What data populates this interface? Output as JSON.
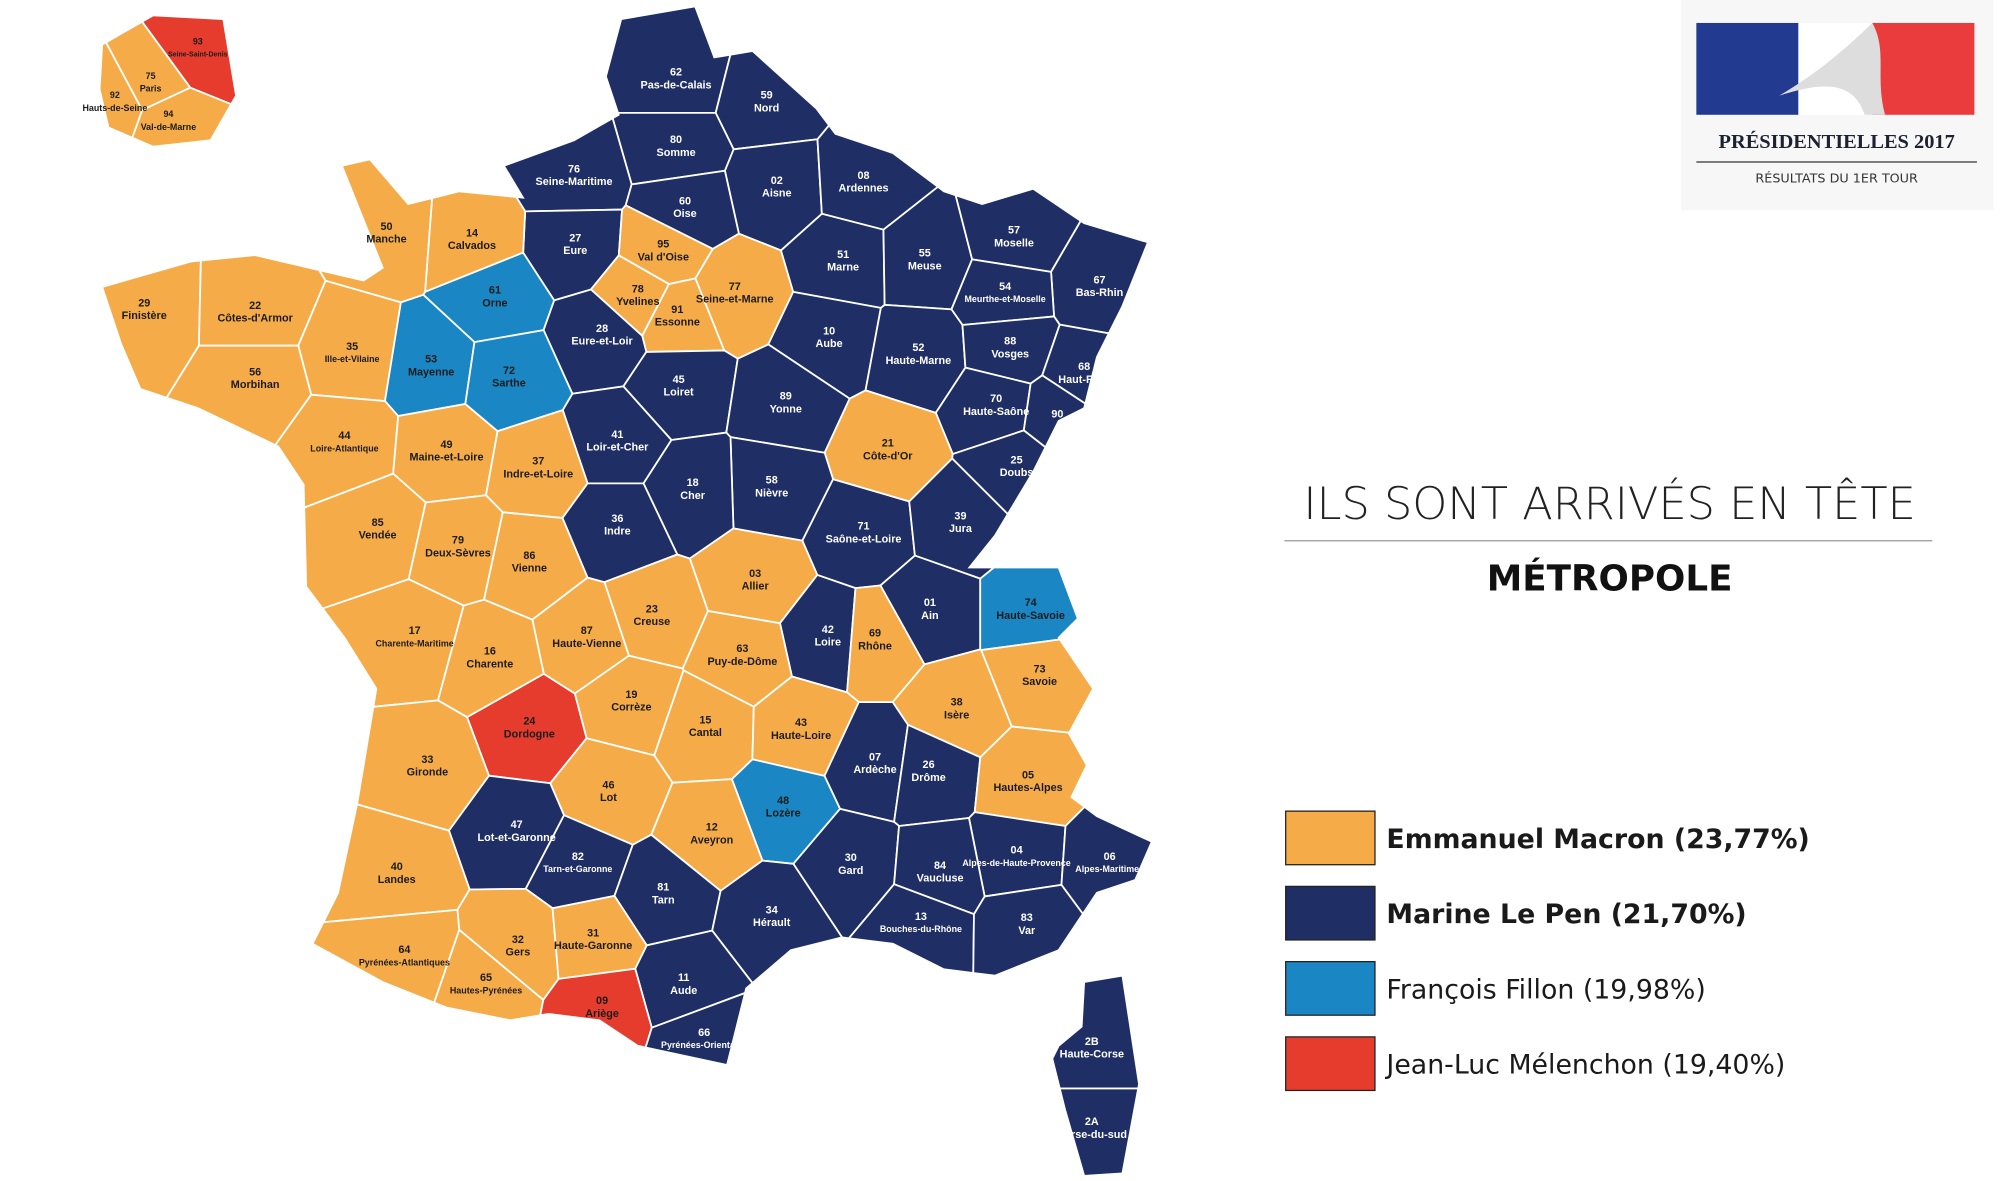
{
  "header": {
    "title": "PRÉSIDENTIELLES 2017",
    "subtitle": "RÉSULTATS DU 1ER TOUR"
  },
  "title": "ILS SONT ARRIVÉS EN TÊTE",
  "subtitle": "MÉTROPOLE",
  "legend": [
    {
      "label": "Emmanuel Macron (23,77%)",
      "color": "#f5ac48"
    },
    {
      "label": "Marine Le Pen (21,70%)",
      "color": "#1f2f66"
    },
    {
      "label": "François Fillon (19,98%)",
      "color": "#1a87c4"
    },
    {
      "label": "Jean-Luc Mélenchon (19,40%)",
      "color": "#e63c2e"
    }
  ],
  "departments": [
    {
      "code": "62",
      "name": "Pas-de-Calais",
      "color": "#1f2f66"
    },
    {
      "code": "59",
      "name": "Nord",
      "color": "#1f2f66"
    },
    {
      "code": "80",
      "name": "Somme",
      "color": "#1f2f66"
    },
    {
      "code": "76",
      "name": "Seine-Maritime",
      "color": "#1f2f66"
    },
    {
      "code": "02",
      "name": "Aisne",
      "color": "#1f2f66"
    },
    {
      "code": "08",
      "name": "Ardennes",
      "color": "#1f2f66"
    },
    {
      "code": "60",
      "name": "Oise",
      "color": "#1f2f66"
    },
    {
      "code": "27",
      "name": "Eure",
      "color": "#1f2f66"
    },
    {
      "code": "50",
      "name": "Manche",
      "color": "#f5ac48"
    },
    {
      "code": "14",
      "name": "Calvados",
      "color": "#f5ac48"
    },
    {
      "code": "95",
      "name": "Val d'Oise",
      "color": "#f5ac48"
    },
    {
      "code": "78",
      "name": "Yvelines",
      "color": "#f5ac48"
    },
    {
      "code": "91",
      "name": "Essonne",
      "color": "#f5ac48"
    },
    {
      "code": "77",
      "name": "Seine-et-Marne",
      "color": "#f5ac48"
    },
    {
      "code": "51",
      "name": "Marne",
      "color": "#1f2f66"
    },
    {
      "code": "55",
      "name": "Meuse",
      "color": "#1f2f66"
    },
    {
      "code": "57",
      "name": "Moselle",
      "color": "#1f2f66"
    },
    {
      "code": "67",
      "name": "Bas-Rhin",
      "color": "#1f2f66"
    },
    {
      "code": "54",
      "name": "Meurthe-et-Moselle",
      "color": "#1f2f66"
    },
    {
      "code": "29",
      "name": "Finistère",
      "color": "#f5ac48"
    },
    {
      "code": "22",
      "name": "Côtes-d'Armor",
      "color": "#f5ac48"
    },
    {
      "code": "61",
      "name": "Orne",
      "color": "#1a87c4"
    },
    {
      "code": "28",
      "name": "Eure-et-Loir",
      "color": "#1f2f66"
    },
    {
      "code": "35",
      "name": "Ille-et-Vilaine",
      "color": "#f5ac48"
    },
    {
      "code": "56",
      "name": "Morbihan",
      "color": "#f5ac48"
    },
    {
      "code": "53",
      "name": "Mayenne",
      "color": "#1a87c4"
    },
    {
      "code": "72",
      "name": "Sarthe",
      "color": "#1a87c4"
    },
    {
      "code": "10",
      "name": "Aube",
      "color": "#1f2f66"
    },
    {
      "code": "52",
      "name": "Haute-Marne",
      "color": "#1f2f66"
    },
    {
      "code": "88",
      "name": "Vosges",
      "color": "#1f2f66"
    },
    {
      "code": "68",
      "name": "Haut-Rhin",
      "color": "#1f2f66"
    },
    {
      "code": "45",
      "name": "Loiret",
      "color": "#1f2f66"
    },
    {
      "code": "89",
      "name": "Yonne",
      "color": "#1f2f66"
    },
    {
      "code": "70",
      "name": "Haute-Saône",
      "color": "#1f2f66"
    },
    {
      "code": "90",
      "color": "#1f2f66"
    },
    {
      "code": "44",
      "name": "Loire-Atlantique",
      "color": "#f5ac48"
    },
    {
      "code": "49",
      "name": "Maine-et-Loire",
      "color": "#f5ac48"
    },
    {
      "code": "41",
      "name": "Loir-et-Cher",
      "color": "#1f2f66"
    },
    {
      "code": "37",
      "name": "Indre-et-Loire",
      "color": "#f5ac48"
    },
    {
      "code": "21",
      "name": "Côte-d'Or",
      "color": "#f5ac48"
    },
    {
      "code": "25",
      "name": "Doubs",
      "color": "#1f2f66"
    },
    {
      "code": "58",
      "name": "Nièvre",
      "color": "#1f2f66"
    },
    {
      "code": "18",
      "name": "Cher",
      "color": "#1f2f66"
    },
    {
      "code": "85",
      "name": "Vendée",
      "color": "#f5ac48"
    },
    {
      "code": "79",
      "name": "Deux-Sèvres",
      "color": "#f5ac48"
    },
    {
      "code": "36",
      "name": "Indre",
      "color": "#1f2f66"
    },
    {
      "code": "86",
      "name": "Vienne",
      "color": "#f5ac48"
    },
    {
      "code": "71",
      "name": "Saône-et-Loire",
      "color": "#1f2f66"
    },
    {
      "code": "39",
      "name": "Jura",
      "color": "#1f2f66"
    },
    {
      "code": "03",
      "name": "Allier",
      "color": "#f5ac48"
    },
    {
      "code": "23",
      "name": "Creuse",
      "color": "#f5ac48"
    },
    {
      "code": "87",
      "name": "Haute-Vienne",
      "color": "#f5ac48"
    },
    {
      "code": "01",
      "name": "Ain",
      "color": "#1f2f66"
    },
    {
      "code": "74",
      "name": "Haute-Savoie",
      "color": "#1a87c4"
    },
    {
      "code": "17",
      "name": "Charente-Maritime",
      "color": "#f5ac48"
    },
    {
      "code": "16",
      "name": "Charente",
      "color": "#f5ac48"
    },
    {
      "code": "42",
      "name": "Loire",
      "color": "#1f2f66"
    },
    {
      "code": "69",
      "name": "Rhône",
      "color": "#f5ac48"
    },
    {
      "code": "63",
      "name": "Puy-de-Dôme",
      "color": "#f5ac48"
    },
    {
      "code": "73",
      "name": "Savoie",
      "color": "#f5ac48"
    },
    {
      "code": "19",
      "name": "Corrèze",
      "color": "#f5ac48"
    },
    {
      "code": "24",
      "name": "Dordogne",
      "color": "#e63c2e"
    },
    {
      "code": "38",
      "name": "Isère",
      "color": "#f5ac48"
    },
    {
      "code": "15",
      "name": "Cantal",
      "color": "#f5ac48"
    },
    {
      "code": "43",
      "name": "Haute-Loire",
      "color": "#f5ac48"
    },
    {
      "code": "33",
      "name": "Gironde",
      "color": "#f5ac48"
    },
    {
      "code": "07",
      "name": "Ardèche",
      "color": "#1f2f66"
    },
    {
      "code": "26",
      "name": "Drôme",
      "color": "#1f2f66"
    },
    {
      "code": "05",
      "name": "Hautes-Alpes",
      "color": "#f5ac48"
    },
    {
      "code": "46",
      "name": "Lot",
      "color": "#f5ac48"
    },
    {
      "code": "48",
      "name": "Lozère",
      "color": "#1a87c4"
    },
    {
      "code": "47",
      "name": "Lot-et-Garonne",
      "color": "#1f2f66"
    },
    {
      "code": "12",
      "name": "Aveyron",
      "color": "#f5ac48"
    },
    {
      "code": "04",
      "name": "Alpes-de-Haute-Provence",
      "color": "#1f2f66"
    },
    {
      "code": "06",
      "name": "Alpes-Maritimes",
      "color": "#1f2f66"
    },
    {
      "code": "40",
      "name": "Landes",
      "color": "#f5ac48"
    },
    {
      "code": "82",
      "name": "Tarn-et-Garonne",
      "color": "#1f2f66"
    },
    {
      "code": "30",
      "name": "Gard",
      "color": "#1f2f66"
    },
    {
      "code": "84",
      "name": "Vaucluse",
      "color": "#1f2f66"
    },
    {
      "code": "81",
      "name": "Tarn",
      "color": "#1f2f66"
    },
    {
      "code": "13",
      "name": "Bouches-du-Rhône",
      "color": "#1f2f66"
    },
    {
      "code": "34",
      "name": "Hérault",
      "color": "#1f2f66"
    },
    {
      "code": "83",
      "name": "Var",
      "color": "#1f2f66"
    },
    {
      "code": "32",
      "name": "Gers",
      "color": "#f5ac48"
    },
    {
      "code": "31",
      "name": "Haute-Garonne",
      "color": "#f5ac48"
    },
    {
      "code": "64",
      "name": "Pyrénées-Atlantiques",
      "color": "#f5ac48"
    },
    {
      "code": "65",
      "name": "Hautes-Pyrénées",
      "color": "#f5ac48"
    },
    {
      "code": "11",
      "name": "Aude",
      "color": "#1f2f66"
    },
    {
      "code": "09",
      "name": "Ariège",
      "color": "#e63c2e"
    },
    {
      "code": "66",
      "name": "Pyrénées-Orientales",
      "color": "#1f2f66"
    },
    {
      "code": "2B",
      "name": "Haute-Corse",
      "color": "#1f2f66"
    },
    {
      "code": "2A",
      "name": "Corse-du-sud",
      "color": "#1f2f66"
    },
    {
      "code": "93",
      "name": "Seine-Saint-Denis",
      "color": "#e63c2e"
    },
    {
      "code": "75",
      "name": "Paris",
      "color": "#f5ac48"
    },
    {
      "code": "92",
      "name": "Hauts-de-Seine",
      "color": "#f5ac48"
    },
    {
      "code": "94",
      "name": "Val-de-Marne",
      "color": "#f5ac48"
    }
  ]
}
